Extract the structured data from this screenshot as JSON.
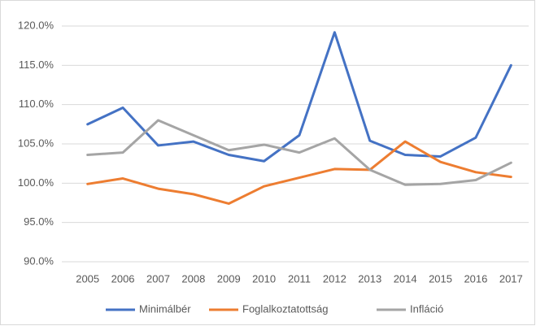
{
  "chart_data": {
    "type": "line",
    "categories": [
      "2005",
      "2006",
      "2007",
      "2008",
      "2009",
      "2010",
      "2011",
      "2012",
      "2013",
      "2014",
      "2015",
      "2016",
      "2017"
    ],
    "series": [
      {
        "name": "Minimálbér",
        "color": "#4472c4",
        "values": [
          107.5,
          109.6,
          104.8,
          105.3,
          103.6,
          102.8,
          106.1,
          119.2,
          105.4,
          103.6,
          103.4,
          105.8,
          115.0
        ]
      },
      {
        "name": "Foglalkoztatottság",
        "color": "#ed7d31",
        "values": [
          99.9,
          100.6,
          99.3,
          98.6,
          97.4,
          99.6,
          100.7,
          101.8,
          101.7,
          105.3,
          102.7,
          101.4,
          100.8
        ]
      },
      {
        "name": "Infláció",
        "color": "#a5a5a5",
        "values": [
          103.6,
          103.9,
          108.0,
          106.1,
          104.2,
          104.9,
          103.9,
          105.7,
          101.7,
          99.8,
          99.9,
          100.4,
          102.6
        ]
      }
    ],
    "ylim": [
      90,
      120
    ],
    "yticks": [
      {
        "value": 90,
        "label": "90.0%"
      },
      {
        "value": 95,
        "label": "95.0%"
      },
      {
        "value": 100,
        "label": "100.0%"
      },
      {
        "value": 105,
        "label": "105.0%"
      },
      {
        "value": 110,
        "label": "110.0%"
      },
      {
        "value": 115,
        "label": "115.0%"
      },
      {
        "value": 120,
        "label": "120.0%"
      }
    ],
    "grid": true,
    "legend": "bottom"
  }
}
